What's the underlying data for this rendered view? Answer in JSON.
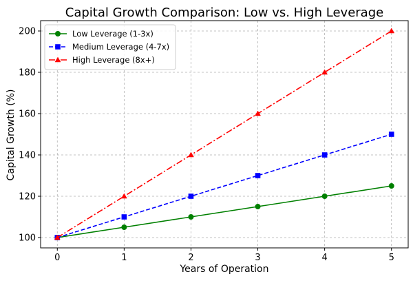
{
  "chart_data": {
    "type": "line",
    "title": "Capital Growth Comparison: Low vs. High Leverage",
    "xlabel": "Years of Operation",
    "ylabel": "Capital Growth (%)",
    "x": [
      0,
      1,
      2,
      3,
      4,
      5
    ],
    "xlim": [
      -0.25,
      5.25
    ],
    "ylim": [
      95,
      205
    ],
    "xticks": [
      "0",
      "1",
      "2",
      "3",
      "4",
      "5"
    ],
    "yticks": [
      "100",
      "120",
      "140",
      "160",
      "180",
      "200"
    ],
    "grid": true,
    "legend_position": "top-left",
    "series": [
      {
        "name": "Low Leverage (1-3x)",
        "values": [
          100,
          105,
          110,
          115,
          120,
          125
        ],
        "color": "#008000",
        "marker": "circle",
        "line_style": "solid"
      },
      {
        "name": "Medium Leverage (4-7x)",
        "values": [
          100,
          110,
          120,
          130,
          140,
          150
        ],
        "color": "#0000ff",
        "marker": "square",
        "line_style": "dashed"
      },
      {
        "name": "High Leverage (8x+)",
        "values": [
          100,
          120,
          140,
          160,
          180,
          200
        ],
        "color": "#ff0000",
        "marker": "triangle",
        "line_style": "dashdot"
      }
    ]
  }
}
